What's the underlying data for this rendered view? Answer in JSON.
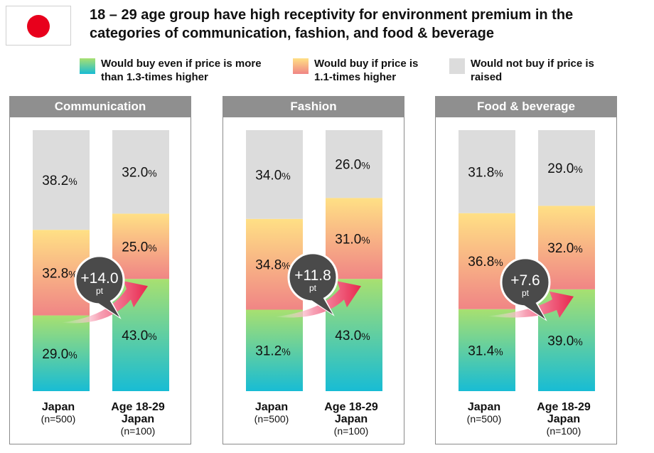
{
  "title": "18 – 29 age group have high receptivity for environment premium in the categories of communication, fashion, and food & beverage",
  "flag_icon": "japan-flag-icon",
  "legend": [
    {
      "label": "Would buy even if price is more\nthan 1.3-times higher",
      "color_top": "#a8e070",
      "color_bottom": "#18bcd4"
    },
    {
      "label": "Would buy if price is\n1.1-times higher",
      "color_top": "#ffe085",
      "color_bottom": "#f08585"
    },
    {
      "label": "Would not buy if price is\nraised",
      "color_top": "#dcdcdc",
      "color_bottom": "#dcdcdc"
    }
  ],
  "chart_data": [
    {
      "type": "bar",
      "stacked": true,
      "title": "Communication",
      "categories": [
        "Japan",
        "Age 18-29\nJapan"
      ],
      "sample_sizes": [
        "(n=500)",
        "(n=100)"
      ],
      "series": [
        {
          "name": "Would buy even if price is more than 1.3-times higher",
          "values": [
            29.0,
            43.0
          ],
          "labels": [
            "29.0",
            "43.0"
          ]
        },
        {
          "name": "Would buy if price is 1.1-times higher",
          "values": [
            32.8,
            25.0
          ],
          "labels": [
            "32.8",
            "25.0"
          ]
        },
        {
          "name": "Would not buy if price is raised",
          "values": [
            38.2,
            32.0
          ],
          "labels": [
            "38.2",
            "32.0"
          ]
        }
      ],
      "unit": "%",
      "difference": {
        "value": "+14.0",
        "unit": "pt"
      },
      "ylim": [
        0,
        100
      ]
    },
    {
      "type": "bar",
      "stacked": true,
      "title": "Fashion",
      "categories": [
        "Japan",
        "Age 18-29\nJapan"
      ],
      "sample_sizes": [
        "(n=500)",
        "(n=100)"
      ],
      "series": [
        {
          "name": "Would buy even if price is more than 1.3-times higher",
          "values": [
            31.2,
            43.0
          ],
          "labels": [
            "31.2",
            "43.0"
          ]
        },
        {
          "name": "Would buy if price is 1.1-times higher",
          "values": [
            34.8,
            31.0
          ],
          "labels": [
            "34.8",
            "31.0"
          ]
        },
        {
          "name": "Would not buy if price is raised",
          "values": [
            34.0,
            26.0
          ],
          "labels": [
            "34.0",
            "26.0"
          ]
        }
      ],
      "unit": "%",
      "difference": {
        "value": "+11.8",
        "unit": "pt"
      },
      "ylim": [
        0,
        100
      ]
    },
    {
      "type": "bar",
      "stacked": true,
      "title": "Food & beverage",
      "categories": [
        "Japan",
        "Age 18-29\nJapan"
      ],
      "sample_sizes": [
        "(n=500)",
        "(n=100)"
      ],
      "series": [
        {
          "name": "Would buy even if price is more than 1.3-times higher",
          "values": [
            31.4,
            39.0
          ],
          "labels": [
            "31.4",
            "39.0"
          ]
        },
        {
          "name": "Would buy if price is 1.1-times higher",
          "values": [
            36.8,
            32.0
          ],
          "labels": [
            "36.8",
            "32.0"
          ]
        },
        {
          "name": "Would not buy if price is raised",
          "values": [
            31.8,
            29.0
          ],
          "labels": [
            "31.8",
            "29.0"
          ]
        }
      ],
      "unit": "%",
      "difference": {
        "value": "+7.6",
        "unit": "pt"
      },
      "ylim": [
        0,
        100
      ]
    }
  ]
}
